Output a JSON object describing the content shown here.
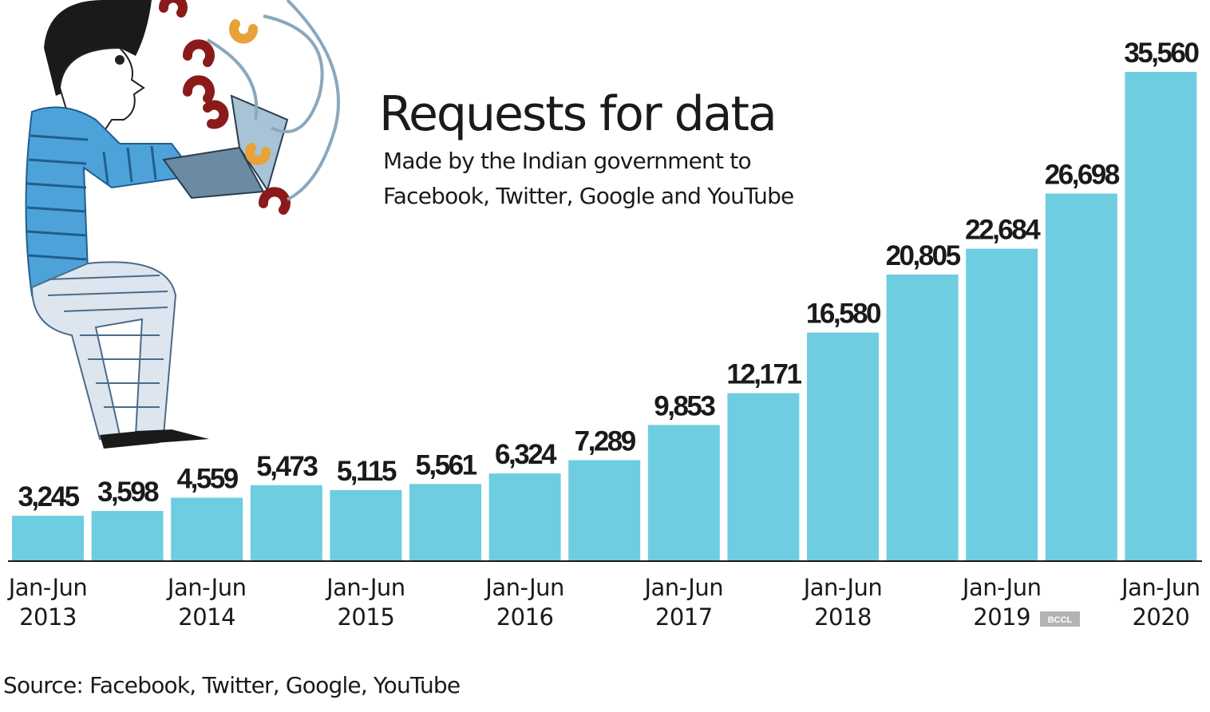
{
  "chart_data": {
    "type": "bar",
    "title": "Requests for data",
    "subtitle_lines": [
      "Made by the Indian government to",
      "Facebook, Twitter, Google and YouTube"
    ],
    "categories": [
      "Jan-Jun 2013",
      "",
      "Jan-Jun 2014",
      "",
      "Jan-Jun 2015",
      "",
      "Jan-Jun 2016",
      "",
      "Jan-Jun 2017",
      "",
      "Jan-Jun 2018",
      "",
      "Jan-Jun 2019",
      "",
      "Jan-Jun 2020"
    ],
    "values": [
      3245,
      3598,
      4559,
      5473,
      5115,
      5561,
      6324,
      7289,
      9853,
      12171,
      16580,
      20805,
      22684,
      26698,
      35560
    ],
    "value_labels": [
      "3,245",
      "3,598",
      "4,559",
      "5,473",
      "5,115",
      "5,561",
      "6,324",
      "7,289",
      "9,853",
      "12,171",
      "16,580",
      "20,805",
      "22,684",
      "26,698",
      "35,560"
    ],
    "ylim": [
      0,
      35560
    ],
    "grid": false,
    "bar_color": "#6ecde0",
    "source": "Source: Facebook, Twitter, Google, YouTube",
    "watermark": "BCCL"
  }
}
